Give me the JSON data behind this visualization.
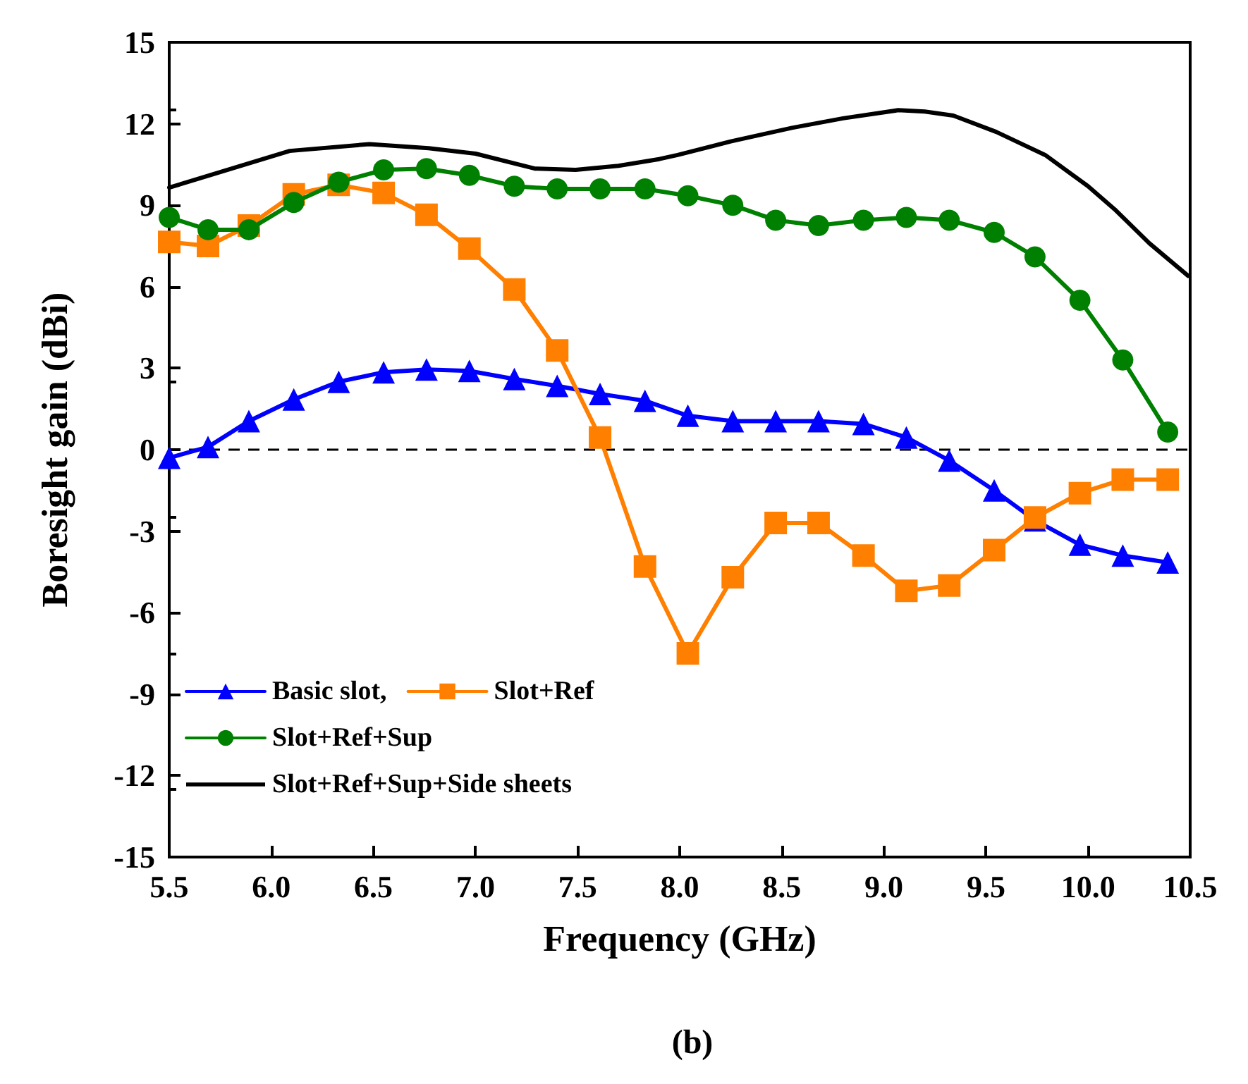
{
  "chart_data": {
    "type": "line",
    "title": "(b)",
    "xlabel": "Frequency (GHz)",
    "ylabel": "Boresight gain (dBi)",
    "xlim": [
      5.5,
      10.5
    ],
    "xticks": [
      5.5,
      {
        "value": 6,
        "label": "6.0"
      },
      6.5,
      {
        "value": 7,
        "label": "7.0"
      },
      7.5,
      {
        "value": 8,
        "label": "8.0"
      },
      8.5,
      {
        "value": 9,
        "label": "9.0"
      },
      9.5,
      {
        "value": 10,
        "label": "10.0"
      },
      10.5
    ],
    "ylim": [
      -15,
      15
    ],
    "yticks": [
      -15,
      -12,
      -9,
      -6,
      -3,
      0,
      3,
      6,
      9,
      12,
      15
    ],
    "grid": false,
    "legend": "bottom left",
    "ref_lines": [
      {
        "axis": "y",
        "value": 0,
        "color": "#000000",
        "line_style": "dashed"
      }
    ],
    "series": [
      {
        "name": "Basic slot,",
        "color": "#0000ff",
        "marker": "triangle",
        "x": [
          5.5,
          5.69,
          5.89,
          6.11,
          6.33,
          6.55,
          6.76,
          6.97,
          7.19,
          7.4,
          7.61,
          7.83,
          8.04,
          8.26,
          8.47,
          8.68,
          8.9,
          9.11,
          9.32,
          9.54,
          9.74,
          9.96,
          10.17,
          10.39
        ],
        "values": [
          -0.3,
          0.1,
          1.05,
          1.85,
          2.5,
          2.85,
          2.95,
          2.9,
          2.6,
          2.35,
          2.05,
          1.8,
          1.25,
          1.05,
          1.05,
          1.05,
          0.95,
          0.45,
          -0.4,
          -1.5,
          -2.6,
          -3.5,
          -3.9,
          -4.15
        ]
      },
      {
        "name": "Slot+Ref",
        "color": "#ff7f00",
        "marker": "square",
        "x": [
          5.5,
          5.69,
          5.89,
          6.11,
          6.33,
          6.55,
          6.76,
          6.97,
          7.19,
          7.4,
          7.61,
          7.83,
          8.04,
          8.26,
          8.47,
          8.68,
          8.9,
          9.11,
          9.32,
          9.54,
          9.74,
          9.96,
          10.17,
          10.39
        ],
        "values": [
          7.65,
          7.5,
          8.25,
          9.4,
          9.75,
          9.45,
          8.65,
          7.4,
          5.9,
          3.65,
          0.45,
          -4.3,
          -7.5,
          -4.7,
          -2.7,
          -2.7,
          -3.9,
          -5.2,
          -5.0,
          -3.7,
          -2.5,
          -1.6,
          -1.1,
          -1.1
        ]
      },
      {
        "name": "Slot+Ref+Sup",
        "color": "#008000",
        "marker": "circle",
        "x": [
          5.5,
          5.69,
          5.89,
          6.11,
          6.33,
          6.55,
          6.76,
          6.97,
          7.19,
          7.4,
          7.61,
          7.83,
          8.04,
          8.26,
          8.47,
          8.68,
          8.9,
          9.11,
          9.32,
          9.54,
          9.74,
          9.96,
          10.17,
          10.39
        ],
        "values": [
          8.55,
          8.1,
          8.1,
          9.1,
          9.85,
          10.3,
          10.35,
          10.1,
          9.7,
          9.6,
          9.6,
          9.6,
          9.35,
          9.0,
          8.45,
          8.25,
          8.45,
          8.55,
          8.45,
          8.0,
          7.1,
          5.5,
          3.3,
          0.65
        ]
      },
      {
        "name": "Slot+Ref+Sup+Side sheets",
        "color": "#000000",
        "marker": "none",
        "x": [
          5.5,
          6.09,
          6.48,
          6.77,
          7.0,
          7.29,
          7.49,
          7.7,
          7.9,
          7.99,
          8.25,
          8.55,
          8.8,
          9.07,
          9.2,
          9.34,
          9.55,
          9.79,
          10.0,
          10.13,
          10.3,
          10.49
        ],
        "values": [
          9.65,
          11.0,
          11.25,
          11.1,
          10.9,
          10.35,
          10.3,
          10.45,
          10.7,
          10.85,
          11.35,
          11.85,
          12.2,
          12.5,
          12.45,
          12.3,
          11.7,
          10.85,
          9.7,
          8.85,
          7.6,
          6.4
        ]
      }
    ]
  }
}
